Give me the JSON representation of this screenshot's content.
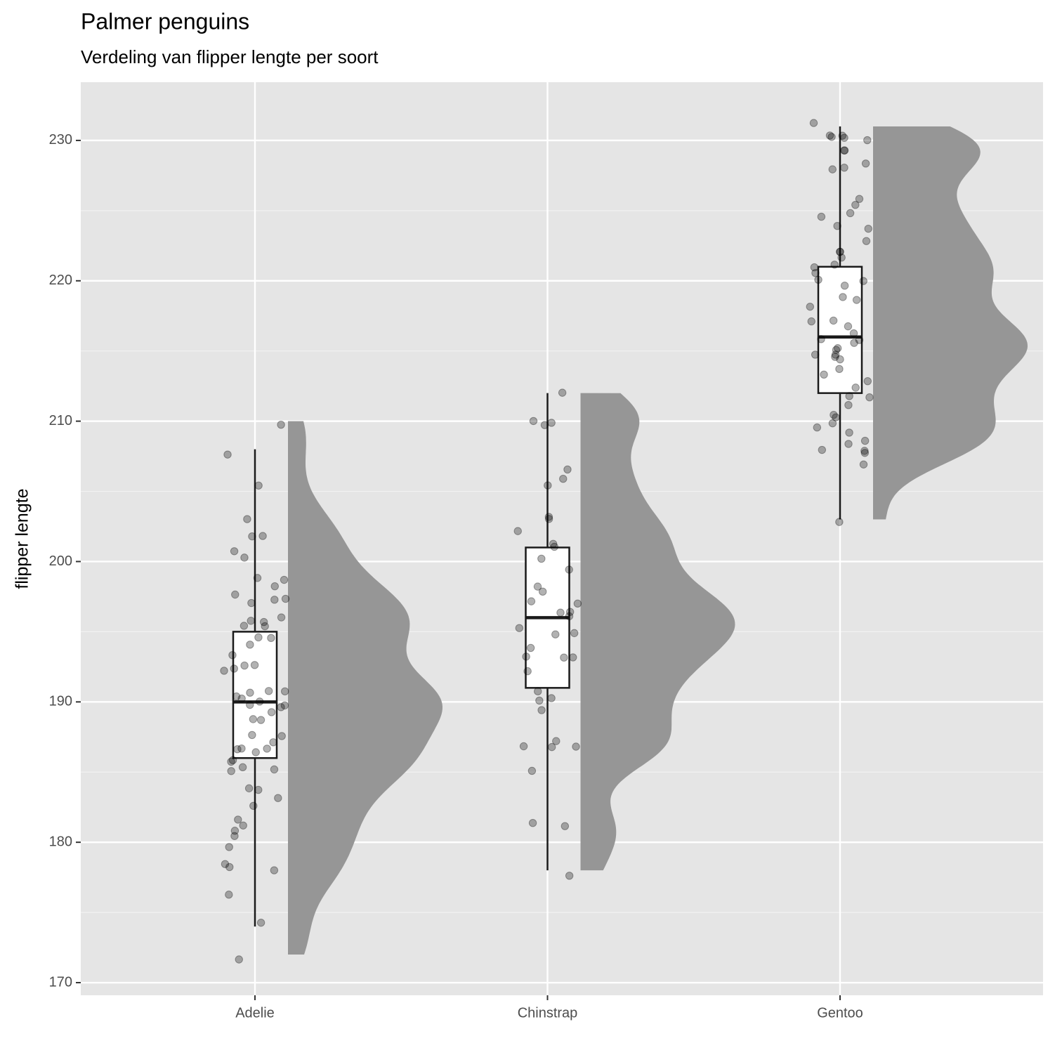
{
  "chart_data": {
    "type": "raincloud",
    "title": "Palmer penguins",
    "subtitle": "Verdeling van flipper lengte per soort",
    "y_label": "flipper lengte",
    "ylim": [
      169.1,
      234.15
    ],
    "yticks": [
      170,
      180,
      190,
      200,
      210,
      220,
      230
    ],
    "grid": true,
    "minor_grid": true,
    "point_color": "#000000",
    "box_fill": "#ffffff",
    "box_stroke": "#1a1a1a",
    "density_color": "#969696",
    "groups": [
      {
        "name": "Adelie",
        "box": {
          "min": 174,
          "q1": 186,
          "median": 190,
          "q3": 195,
          "max": 208
        },
        "points": [
          210,
          208,
          205,
          203,
          202,
          202,
          201,
          200,
          199,
          199,
          198,
          198,
          197,
          197,
          197,
          196,
          196,
          196,
          195,
          195,
          195,
          195,
          194,
          193,
          193,
          193,
          192,
          192,
          191,
          191,
          191,
          190,
          190,
          190,
          190,
          190,
          190,
          189,
          189,
          189,
          188,
          188,
          187,
          187,
          187,
          187,
          186,
          186,
          186,
          185,
          185,
          185,
          184,
          184,
          183,
          183,
          182,
          181,
          181,
          180,
          180,
          178,
          178,
          178,
          176,
          174,
          172
        ]
      },
      {
        "name": "Chinstrap",
        "box": {
          "min": 178,
          "q1": 191,
          "median": 196,
          "q3": 201,
          "max": 212
        },
        "points": [
          212,
          210,
          210,
          210,
          207,
          206,
          205,
          203,
          203,
          202,
          201,
          201,
          200,
          199,
          198,
          198,
          197,
          197,
          196,
          196,
          196,
          195,
          195,
          195,
          194,
          193,
          193,
          193,
          192,
          191,
          190,
          190,
          189,
          187,
          187,
          187,
          187,
          185,
          181,
          181,
          178
        ]
      },
      {
        "name": "Gentoo",
        "box": {
          "min": 203,
          "q1": 212,
          "median": 216,
          "q3": 221,
          "max": 231
        },
        "points": [
          231,
          230,
          230,
          230,
          230,
          230,
          229,
          229,
          228,
          228,
          228,
          226,
          225,
          225,
          225,
          224,
          224,
          223,
          222,
          222,
          222,
          221,
          221,
          221,
          220,
          220,
          220,
          219,
          219,
          218,
          217,
          217,
          217,
          216,
          216,
          216,
          216,
          215,
          215,
          215,
          215,
          215,
          214,
          214,
          213,
          213,
          212,
          212,
          212,
          211,
          210,
          210,
          210,
          210,
          209,
          209,
          208,
          208,
          208,
          208,
          207,
          203
        ]
      }
    ]
  }
}
